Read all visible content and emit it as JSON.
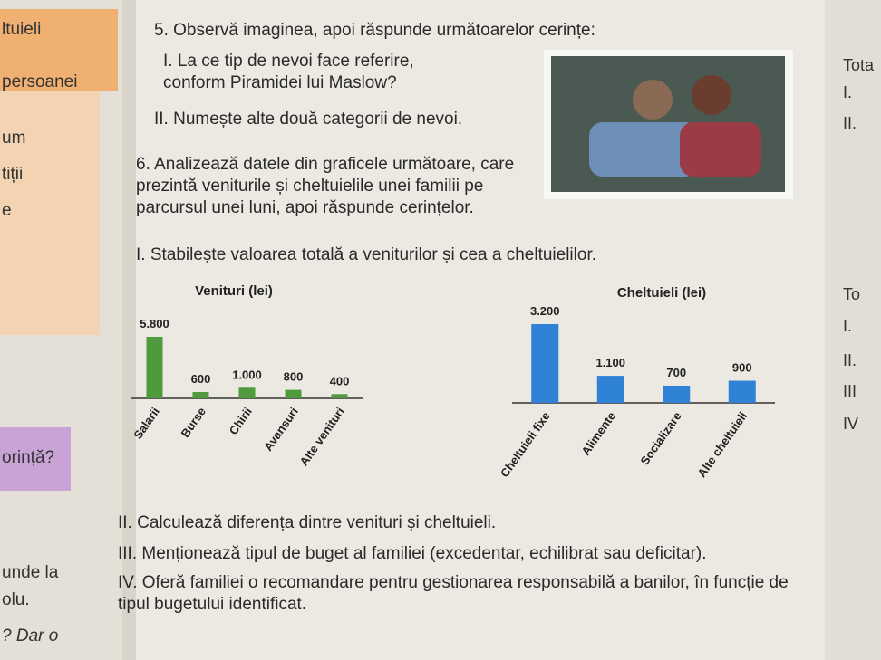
{
  "left_margin": [
    "ltuieli",
    "persoanei",
    "um",
    "tiții",
    "e",
    "orință?",
    "unde la",
    "olu.",
    "? Dar o"
  ],
  "right_margin": [
    "Tota",
    "I.",
    "II.",
    "To",
    "I.",
    "II.",
    "III",
    "IV"
  ],
  "task5": {
    "title": "5. Observă imaginea, apoi răspunde următoarelor cerințe:",
    "items": [
      "I. La ce tip de nevoi face referire, conform Piramidei lui Maslow?",
      "II. Numește alte două categorii de nevoi."
    ]
  },
  "task6": {
    "title": "6. Analizează datele din graficele următoare, care prezintă veniturile și cheltuielile unei familii pe parcursul unei luni, apoi răspunde cerințelor.",
    "items": [
      "I. Stabilește valoarea totală a veniturilor și cea a cheltuielilor.",
      "II. Calculează diferența dintre venituri și cheltuieli.",
      "III. Menționează tipul de buget al familiei (excedentar, echilibrat sau deficitar).",
      "IV. Oferă familiei o recomandare pentru gestionarea responsabilă a banilor, în funcție de tipul bugetului identificat."
    ]
  },
  "chart_data": [
    {
      "type": "bar",
      "title": "Venituri (lei)",
      "color": "#4f9a3c",
      "categories": [
        "Salarii",
        "Burse",
        "Chirii",
        "Avansuri",
        "Alte venituri"
      ],
      "values": [
        5800,
        600,
        1000,
        800,
        400
      ],
      "value_labels": [
        "5.800",
        "600",
        "1.000",
        "800",
        "400"
      ]
    },
    {
      "type": "bar",
      "title": "Cheltuieli (lei)",
      "color": "#2f82d6",
      "categories": [
        "Cheltuieli fixe",
        "Alimente",
        "Socializare",
        "Alte cheltuieli"
      ],
      "values": [
        3200,
        1100,
        700,
        900
      ],
      "value_labels": [
        "3.200",
        "1.100",
        "700",
        "900"
      ]
    }
  ]
}
